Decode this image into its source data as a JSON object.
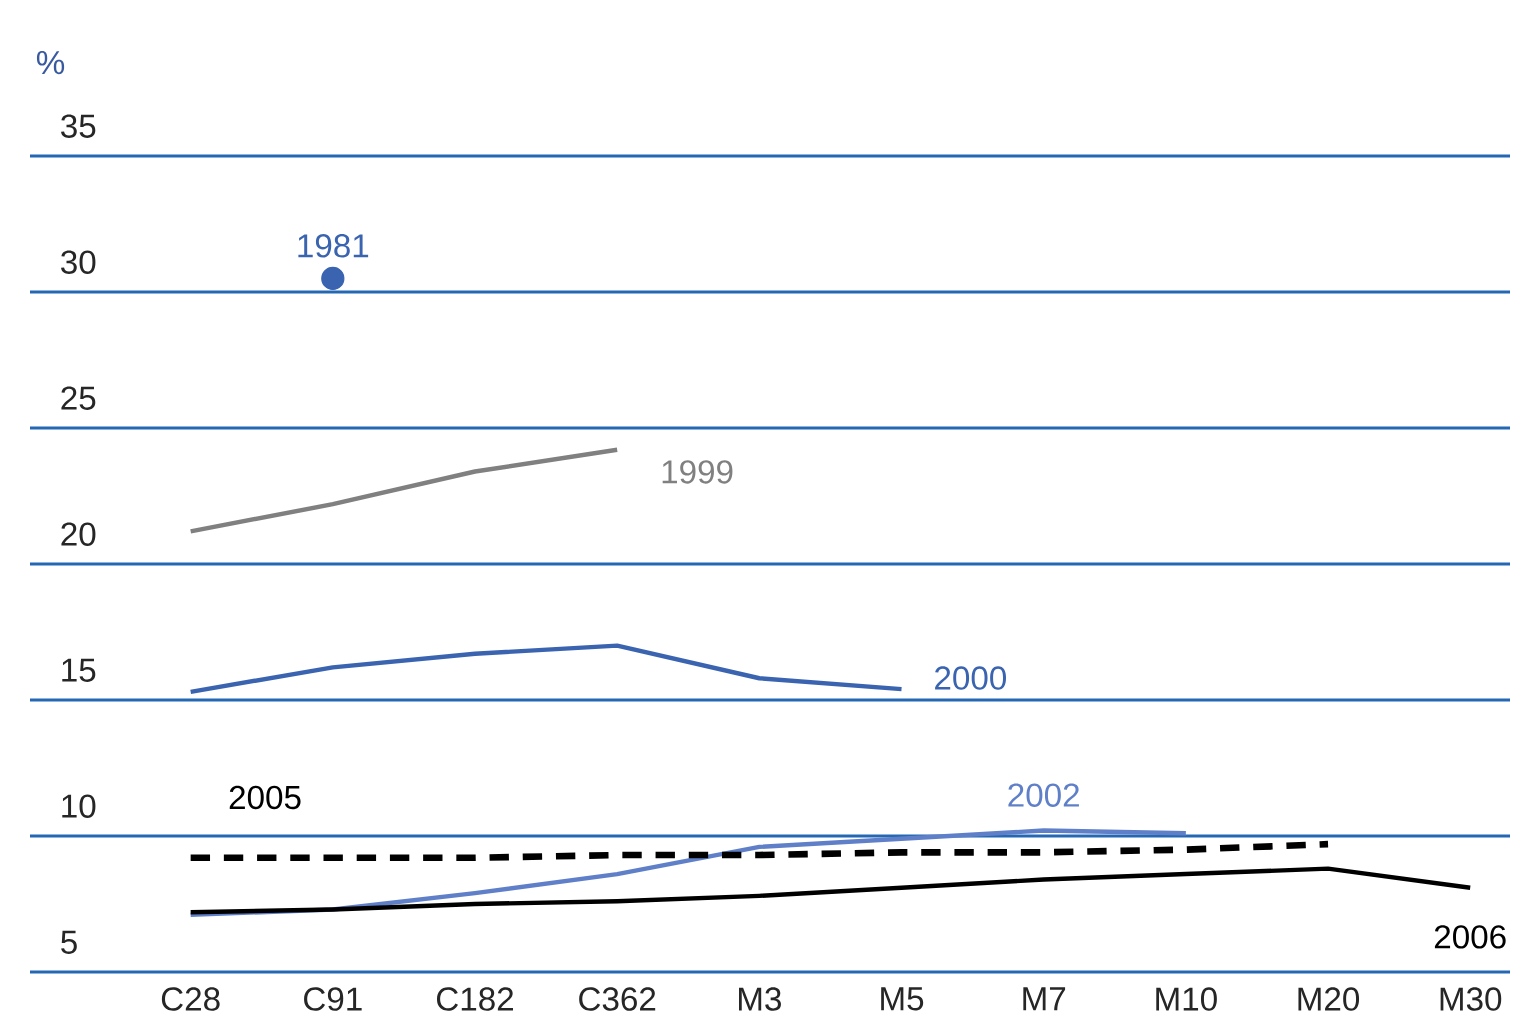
{
  "chart_data": {
    "type": "line",
    "ylabel": "%",
    "categories": [
      "C28",
      "C91",
      "C182",
      "C362",
      "M3",
      "M5",
      "M7",
      "M10",
      "M20",
      "M30"
    ],
    "ylim": [
      5,
      35
    ],
    "yticks": [
      5,
      10,
      15,
      20,
      25,
      30,
      35
    ],
    "grid": "y",
    "series": [
      {
        "name": "1981",
        "type": "scatter",
        "marker": "circle",
        "color": "#3a64b0",
        "values": [
          null,
          30.5,
          null,
          null,
          null,
          null,
          null,
          null,
          null,
          null
        ]
      },
      {
        "name": "1999",
        "color": "#808080",
        "values": [
          21.2,
          22.2,
          23.4,
          24.2,
          null,
          null,
          null,
          null,
          null,
          null
        ]
      },
      {
        "name": "2000",
        "color": "#3a64b0",
        "values": [
          15.3,
          16.2,
          16.7,
          17.0,
          15.8,
          15.4,
          null,
          null,
          null,
          null
        ]
      },
      {
        "name": "2002",
        "color": "#5f80c8",
        "values": [
          7.1,
          7.3,
          7.9,
          8.6,
          9.6,
          9.9,
          10.2,
          10.1,
          null,
          null
        ]
      },
      {
        "name": "2005",
        "color": "#000000",
        "line_style": "dashed",
        "values": [
          9.2,
          9.2,
          9.2,
          9.3,
          9.3,
          9.4,
          9.4,
          9.5,
          9.7,
          null
        ]
      },
      {
        "name": "2006",
        "color": "#000000",
        "line_style": "solid",
        "values": [
          7.2,
          7.3,
          7.5,
          7.6,
          7.8,
          8.1,
          8.4,
          8.6,
          8.8,
          8.1
        ]
      }
    ]
  }
}
